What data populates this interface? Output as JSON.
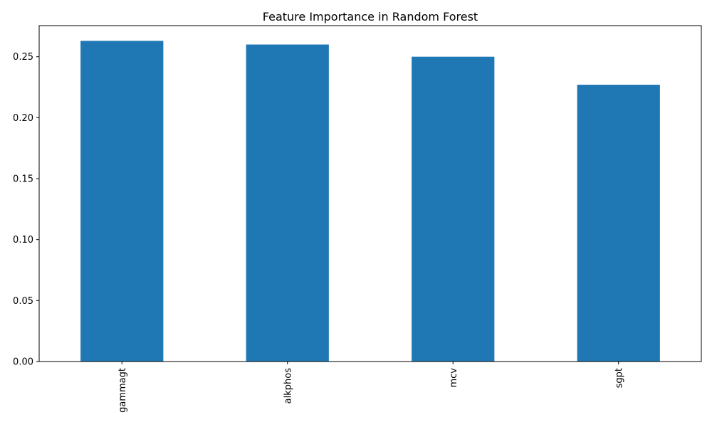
{
  "chart_data": {
    "type": "bar",
    "title": "Feature Importance in Random Forest",
    "xlabel": "",
    "ylabel": "",
    "categories": [
      "gammagt",
      "alkphos",
      "mcv",
      "sgpt"
    ],
    "values": [
      0.263,
      0.26,
      0.25,
      0.227
    ],
    "ylim": [
      0,
      0.2755
    ],
    "yticks": [
      0.0,
      0.05,
      0.1,
      0.15,
      0.2,
      0.25
    ],
    "ytick_labels": [
      "0.00",
      "0.05",
      "0.10",
      "0.15",
      "0.20",
      "0.25"
    ],
    "grid": false,
    "legend": "none",
    "bar_color": "#1f77b4"
  }
}
